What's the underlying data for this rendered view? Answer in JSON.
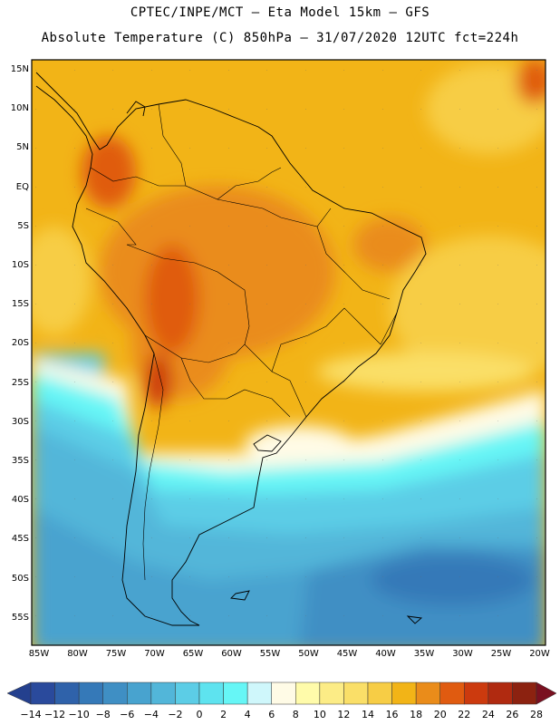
{
  "header": {
    "line1": "CPTEC/INPE/MCT –  Eta Model 15km – GFS",
    "line2": "Absolute Temperature (C) 850hPa – 31/07/2020 12UTC fct=224h"
  },
  "axes": {
    "lat_labels": [
      "15N",
      "10N",
      "5N",
      "EQ",
      "5S",
      "10S",
      "15S",
      "20S",
      "25S",
      "30S",
      "35S",
      "40S",
      "45S",
      "50S",
      "55S"
    ],
    "lon_labels": [
      "85W",
      "80W",
      "75W",
      "70W",
      "65W",
      "60W",
      "55W",
      "50W",
      "45W",
      "40W",
      "35W",
      "30W",
      "25W",
      "20W"
    ]
  },
  "colorbar": {
    "labels": [
      "-14",
      "-12",
      "-10",
      "-8",
      "-6",
      "-4",
      "-2",
      "0",
      "2",
      "4",
      "6",
      "8",
      "10",
      "12",
      "14",
      "16",
      "18",
      "20",
      "22",
      "24",
      "26",
      "28"
    ],
    "colors": [
      "#2a4a9c",
      "#2f62aa",
      "#3579b8",
      "#3f8fc4",
      "#48a3cf",
      "#52b6d9",
      "#5ccde6",
      "#5ee3ef",
      "#66f6f6",
      "#cff7fb",
      "#fffbe6",
      "#fffbaa",
      "#fcec86",
      "#fadf68",
      "#f7cd45",
      "#f2b417",
      "#ea8c1a",
      "#e05b10",
      "#cc3a0e",
      "#b02a10",
      "#8c2210"
    ],
    "under_color": "#24408e",
    "over_color": "#7a1020"
  }
}
